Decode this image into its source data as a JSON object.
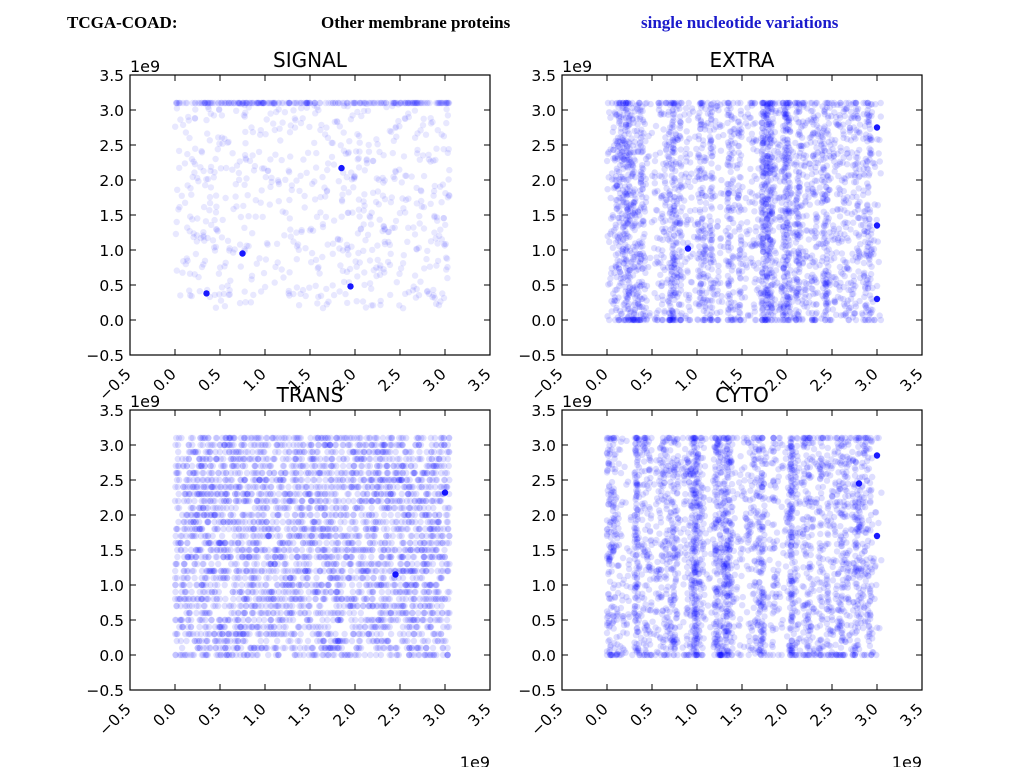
{
  "header": {
    "dataset": "TCGA-COAD:",
    "category": "Other membrane proteins",
    "variation": "single nucleotide variations",
    "variation_color": "#1a1acc"
  },
  "colors": {
    "point": "#0000ff",
    "axis": "#000000",
    "background": "#ffffff"
  },
  "chart_data": [
    {
      "type": "scatter",
      "title": "SIGNAL",
      "xlim": [
        -0.5,
        3.5
      ],
      "ylim": [
        -0.5,
        3.5
      ],
      "x_offset_label": "",
      "y_offset_label": "1e9",
      "xticks": [
        "−0.5",
        "0.0",
        "0.5",
        "1.0",
        "1.5",
        "2.0",
        "2.5",
        "3.0",
        "3.5"
      ],
      "yticks": [
        "−0.5",
        "0.0",
        "0.5",
        "1.0",
        "1.5",
        "2.0",
        "2.5",
        "3.0",
        "3.5"
      ],
      "pattern": "sparse",
      "x_range": [
        0.0,
        3.05
      ],
      "y_range": [
        0.15,
        3.1
      ],
      "point_count": 900,
      "alpha": 0.09,
      "highlight_points": [
        [
          1.85,
          2.17
        ],
        [
          1.95,
          0.48
        ],
        [
          0.75,
          0.95
        ],
        [
          0.35,
          0.38
        ]
      ]
    },
    {
      "type": "scatter",
      "title": "EXTRA",
      "xlim": [
        -0.5,
        3.5
      ],
      "ylim": [
        -0.5,
        3.5
      ],
      "x_offset_label": "",
      "y_offset_label": "1e9",
      "xticks": [
        "−0.5",
        "0.0",
        "0.5",
        "1.0",
        "1.5",
        "2.0",
        "2.5",
        "3.0",
        "3.5"
      ],
      "yticks": [
        "−0.5",
        "0.0",
        "0.5",
        "1.0",
        "1.5",
        "2.0",
        "2.5",
        "3.0",
        "3.5"
      ],
      "pattern": "vertical-bands",
      "x_range": [
        0.0,
        3.05
      ],
      "y_range": [
        0.0,
        3.1
      ],
      "point_count": 3200,
      "alpha": 0.13,
      "highlight_points": [
        [
          0.9,
          1.02
        ],
        [
          3.0,
          2.75
        ],
        [
          3.0,
          1.35
        ],
        [
          3.0,
          0.3
        ]
      ]
    },
    {
      "type": "scatter",
      "title": "TRANS",
      "xlim": [
        -0.5,
        3.5
      ],
      "ylim": [
        -0.5,
        3.5
      ],
      "x_offset_label": "1e9",
      "y_offset_label": "1e9",
      "xticks": [
        "−0.5",
        "0.0",
        "0.5",
        "1.0",
        "1.5",
        "2.0",
        "2.5",
        "3.0",
        "3.5"
      ],
      "yticks": [
        "−0.5",
        "0.0",
        "0.5",
        "1.0",
        "1.5",
        "2.0",
        "2.5",
        "3.0",
        "3.5"
      ],
      "pattern": "grid-rows",
      "x_range": [
        0.0,
        3.05
      ],
      "y_range": [
        0.0,
        3.1
      ],
      "point_count": 3400,
      "alpha": 0.12,
      "highlight_points": [
        [
          3.0,
          2.32
        ],
        [
          2.45,
          1.15
        ]
      ]
    },
    {
      "type": "scatter",
      "title": "CYTO",
      "xlim": [
        -0.5,
        3.5
      ],
      "ylim": [
        -0.5,
        3.5
      ],
      "x_offset_label": "1e9",
      "y_offset_label": "1e9",
      "xticks": [
        "−0.5",
        "0.0",
        "0.5",
        "1.0",
        "1.5",
        "2.0",
        "2.5",
        "3.0",
        "3.5"
      ],
      "yticks": [
        "−0.5",
        "0.0",
        "0.5",
        "1.0",
        "1.5",
        "2.0",
        "2.5",
        "3.0",
        "3.5"
      ],
      "pattern": "vertical-bands",
      "x_range": [
        0.0,
        3.05
      ],
      "y_range": [
        0.0,
        3.1
      ],
      "point_count": 3200,
      "alpha": 0.13,
      "highlight_points": [
        [
          3.0,
          2.85
        ],
        [
          3.0,
          1.7
        ],
        [
          2.8,
          2.45
        ]
      ]
    }
  ]
}
